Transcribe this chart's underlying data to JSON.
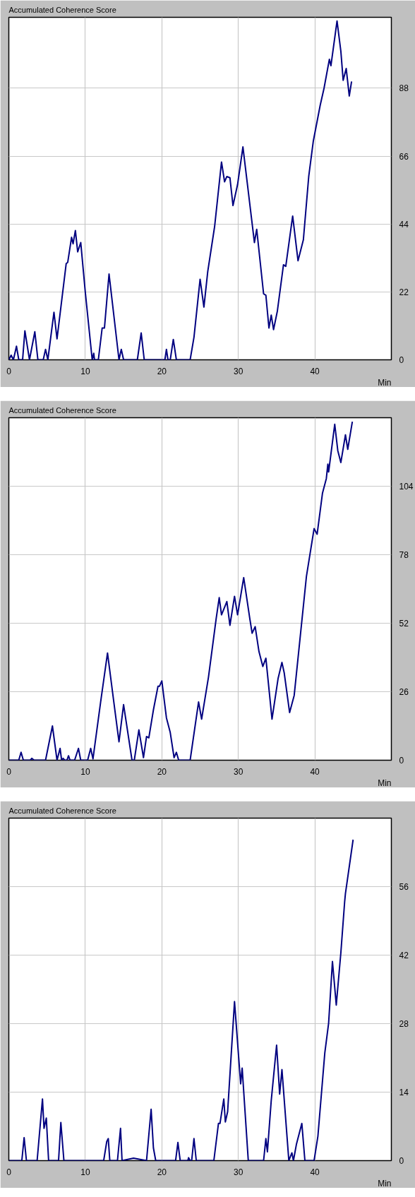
{
  "chart_data": [
    {
      "type": "line",
      "title": "Accumulated Coherence Score",
      "xlabel": "Min",
      "color": "#000080",
      "grid": true,
      "xlim": [
        0,
        50
      ],
      "ylim": [
        0,
        111
      ],
      "xticks": [
        0,
        10,
        20,
        30,
        40
      ],
      "yticks": [
        0,
        22,
        44,
        66,
        88
      ],
      "x": [
        0,
        0.3,
        0.6,
        1.0,
        1.3,
        1.8,
        2.1,
        2.7,
        3.4,
        3.8,
        4.5,
        4.8,
        5.1,
        5.9,
        6.3,
        7.5,
        7.7,
        8.2,
        8.4,
        8.7,
        9.0,
        9.4,
        10.0,
        10.9,
        11.1,
        11.2,
        11.7,
        12.2,
        12.5,
        13.1,
        14.4,
        14.7,
        15.0,
        16.8,
        17.3,
        17.7,
        20.4,
        20.6,
        20.8,
        21.1,
        21.5,
        21.9,
        23.7,
        24.2,
        25.0,
        25.5,
        26.0,
        26.9,
        27.8,
        28.2,
        28.5,
        28.9,
        29.3,
        29.9,
        30.6,
        32.1,
        32.4,
        33.3,
        33.6,
        34.0,
        34.3,
        34.6,
        35.1,
        35.9,
        36.2,
        37.1,
        37.8,
        38.5,
        39.2,
        39.8,
        40.7,
        41.2,
        41.9,
        42.1,
        42.9,
        43.4,
        43.7,
        44.1,
        44.5,
        44.8
      ],
      "values": [
        0,
        1.5,
        0,
        4.4,
        0,
        0,
        9.4,
        0,
        9.1,
        0,
        0,
        3.4,
        0,
        15.4,
        6.8,
        31.2,
        31.6,
        39.7,
        37.6,
        41.9,
        35,
        38,
        21.8,
        0,
        2.1,
        0,
        0,
        10.3,
        10.3,
        27.8,
        0,
        3.4,
        0,
        0,
        8.7,
        0,
        0,
        3.4,
        0,
        0,
        6.6,
        0,
        0,
        7.3,
        26.1,
        17.1,
        28.6,
        43.2,
        64.1,
        57.7,
        59.4,
        59,
        50,
        56.8,
        69,
        38,
        42.3,
        21.4,
        20.9,
        10.3,
        14.5,
        9.8,
        15.8,
        30.8,
        30.3,
        46.6,
        32.1,
        38.9,
        59.4,
        70.9,
        82.5,
        88,
        97.4,
        95.3,
        109.8,
        100,
        90.6,
        94.4,
        85.5,
        90.2
      ]
    },
    {
      "type": "line",
      "title": "Accumulated Coherence Score",
      "xlabel": "Min",
      "color": "#000080",
      "grid": true,
      "xlim": [
        0,
        50
      ],
      "ylim": [
        0,
        130
      ],
      "xticks": [
        0,
        10,
        20,
        30,
        40
      ],
      "yticks": [
        0,
        26,
        52,
        78,
        104
      ],
      "x": [
        0,
        1.3,
        1.6,
        1.9,
        2.8,
        3.0,
        3.3,
        4.8,
        5.7,
        6.3,
        6.7,
        6.9,
        7.1,
        7.3,
        7.6,
        7.8,
        8.0,
        8.6,
        9.1,
        9.4,
        10.3,
        10.7,
        11.0,
        12.0,
        12.9,
        13.7,
        14.4,
        15.0,
        16.1,
        16.4,
        17.0,
        17.6,
        18.0,
        18.3,
        18.9,
        19.5,
        19.7,
        20.0,
        20.6,
        21.1,
        21.6,
        21.9,
        22.2,
        23.7,
        24.8,
        25.2,
        26.1,
        27.1,
        27.5,
        27.8,
        28.5,
        28.9,
        29.5,
        29.9,
        30.7,
        31.5,
        31.8,
        32.2,
        32.7,
        33.2,
        33.6,
        34.4,
        35.2,
        35.7,
        36.0,
        36.7,
        37.3,
        38.9,
        39.9,
        40.3,
        41.0,
        41.5,
        41.7,
        41.8,
        42.6,
        43.0,
        43.4,
        44.0,
        44.3,
        44.9
      ],
      "values": [
        0,
        0,
        3,
        0,
        0,
        0.7,
        0,
        0,
        13,
        0,
        4.5,
        0,
        0.7,
        0,
        0,
        1.7,
        0,
        0,
        4.5,
        0,
        0,
        4.5,
        0.5,
        22.1,
        40.7,
        22.6,
        7,
        21.1,
        0,
        0,
        11.5,
        1,
        9,
        8.5,
        19.1,
        28.1,
        28.1,
        30.1,
        16.1,
        10.5,
        1,
        3,
        0,
        0,
        22.1,
        15.6,
        31.6,
        53.7,
        61.7,
        55.2,
        60.2,
        51.2,
        62.2,
        55.2,
        69.3,
        53.7,
        48.2,
        50.7,
        41.2,
        35.6,
        38.7,
        15.6,
        31.1,
        37.1,
        33.1,
        18.1,
        24.6,
        69.8,
        87.9,
        85.8,
        101.4,
        106.9,
        112.4,
        109.4,
        127.5,
        117.5,
        113,
        123.5,
        118,
        128.5
      ]
    },
    {
      "type": "line",
      "title": "Accumulated Coherence Score",
      "xlabel": "Min",
      "color": "#000080",
      "grid": true,
      "xlim": [
        0,
        50
      ],
      "ylim": [
        0,
        70
      ],
      "xticks": [
        0,
        10,
        20,
        30,
        40
      ],
      "yticks": [
        0,
        14,
        28,
        42,
        56
      ],
      "x": [
        0,
        1.7,
        2.0,
        2.3,
        3.7,
        4.4,
        4.6,
        4.9,
        5.2,
        6.5,
        6.8,
        7.2,
        12.4,
        12.8,
        13.0,
        13.2,
        14.2,
        14.6,
        14.8,
        16.3,
        18.0,
        18.6,
        18.9,
        19.2,
        21.8,
        22.1,
        22.4,
        23.4,
        23.5,
        23.7,
        23.9,
        24.2,
        24.5,
        26.8,
        27.4,
        27.6,
        28.1,
        28.3,
        28.6,
        29.5,
        30.3,
        30.5,
        31.3,
        33.3,
        33.6,
        33.8,
        34.3,
        35.0,
        35.4,
        35.7,
        36.6,
        37.0,
        37.2,
        37.6,
        38.3,
        38.7,
        39.9,
        40.4,
        41.3,
        41.8,
        42.3,
        42.8,
        43.4,
        43.9,
        44.0,
        45.0
      ],
      "values": [
        0,
        0,
        4.7,
        0,
        0,
        12.6,
        6.6,
        8.7,
        0,
        0,
        7.8,
        0,
        0,
        3.9,
        4.5,
        0,
        0,
        6.6,
        0,
        0.5,
        0,
        10.5,
        2.6,
        0,
        0,
        3.7,
        0,
        0,
        0.6,
        0,
        0,
        4.5,
        0,
        0,
        7.6,
        7.6,
        12.6,
        7.9,
        10,
        32.5,
        15.7,
        18.9,
        0,
        0,
        4.5,
        1.8,
        12.3,
        23.6,
        13.6,
        18.6,
        0,
        1.6,
        0,
        3.4,
        7.6,
        0,
        0,
        5,
        22,
        28.1,
        40.7,
        31.8,
        42.5,
        53,
        54.6,
        65.6
      ]
    }
  ]
}
